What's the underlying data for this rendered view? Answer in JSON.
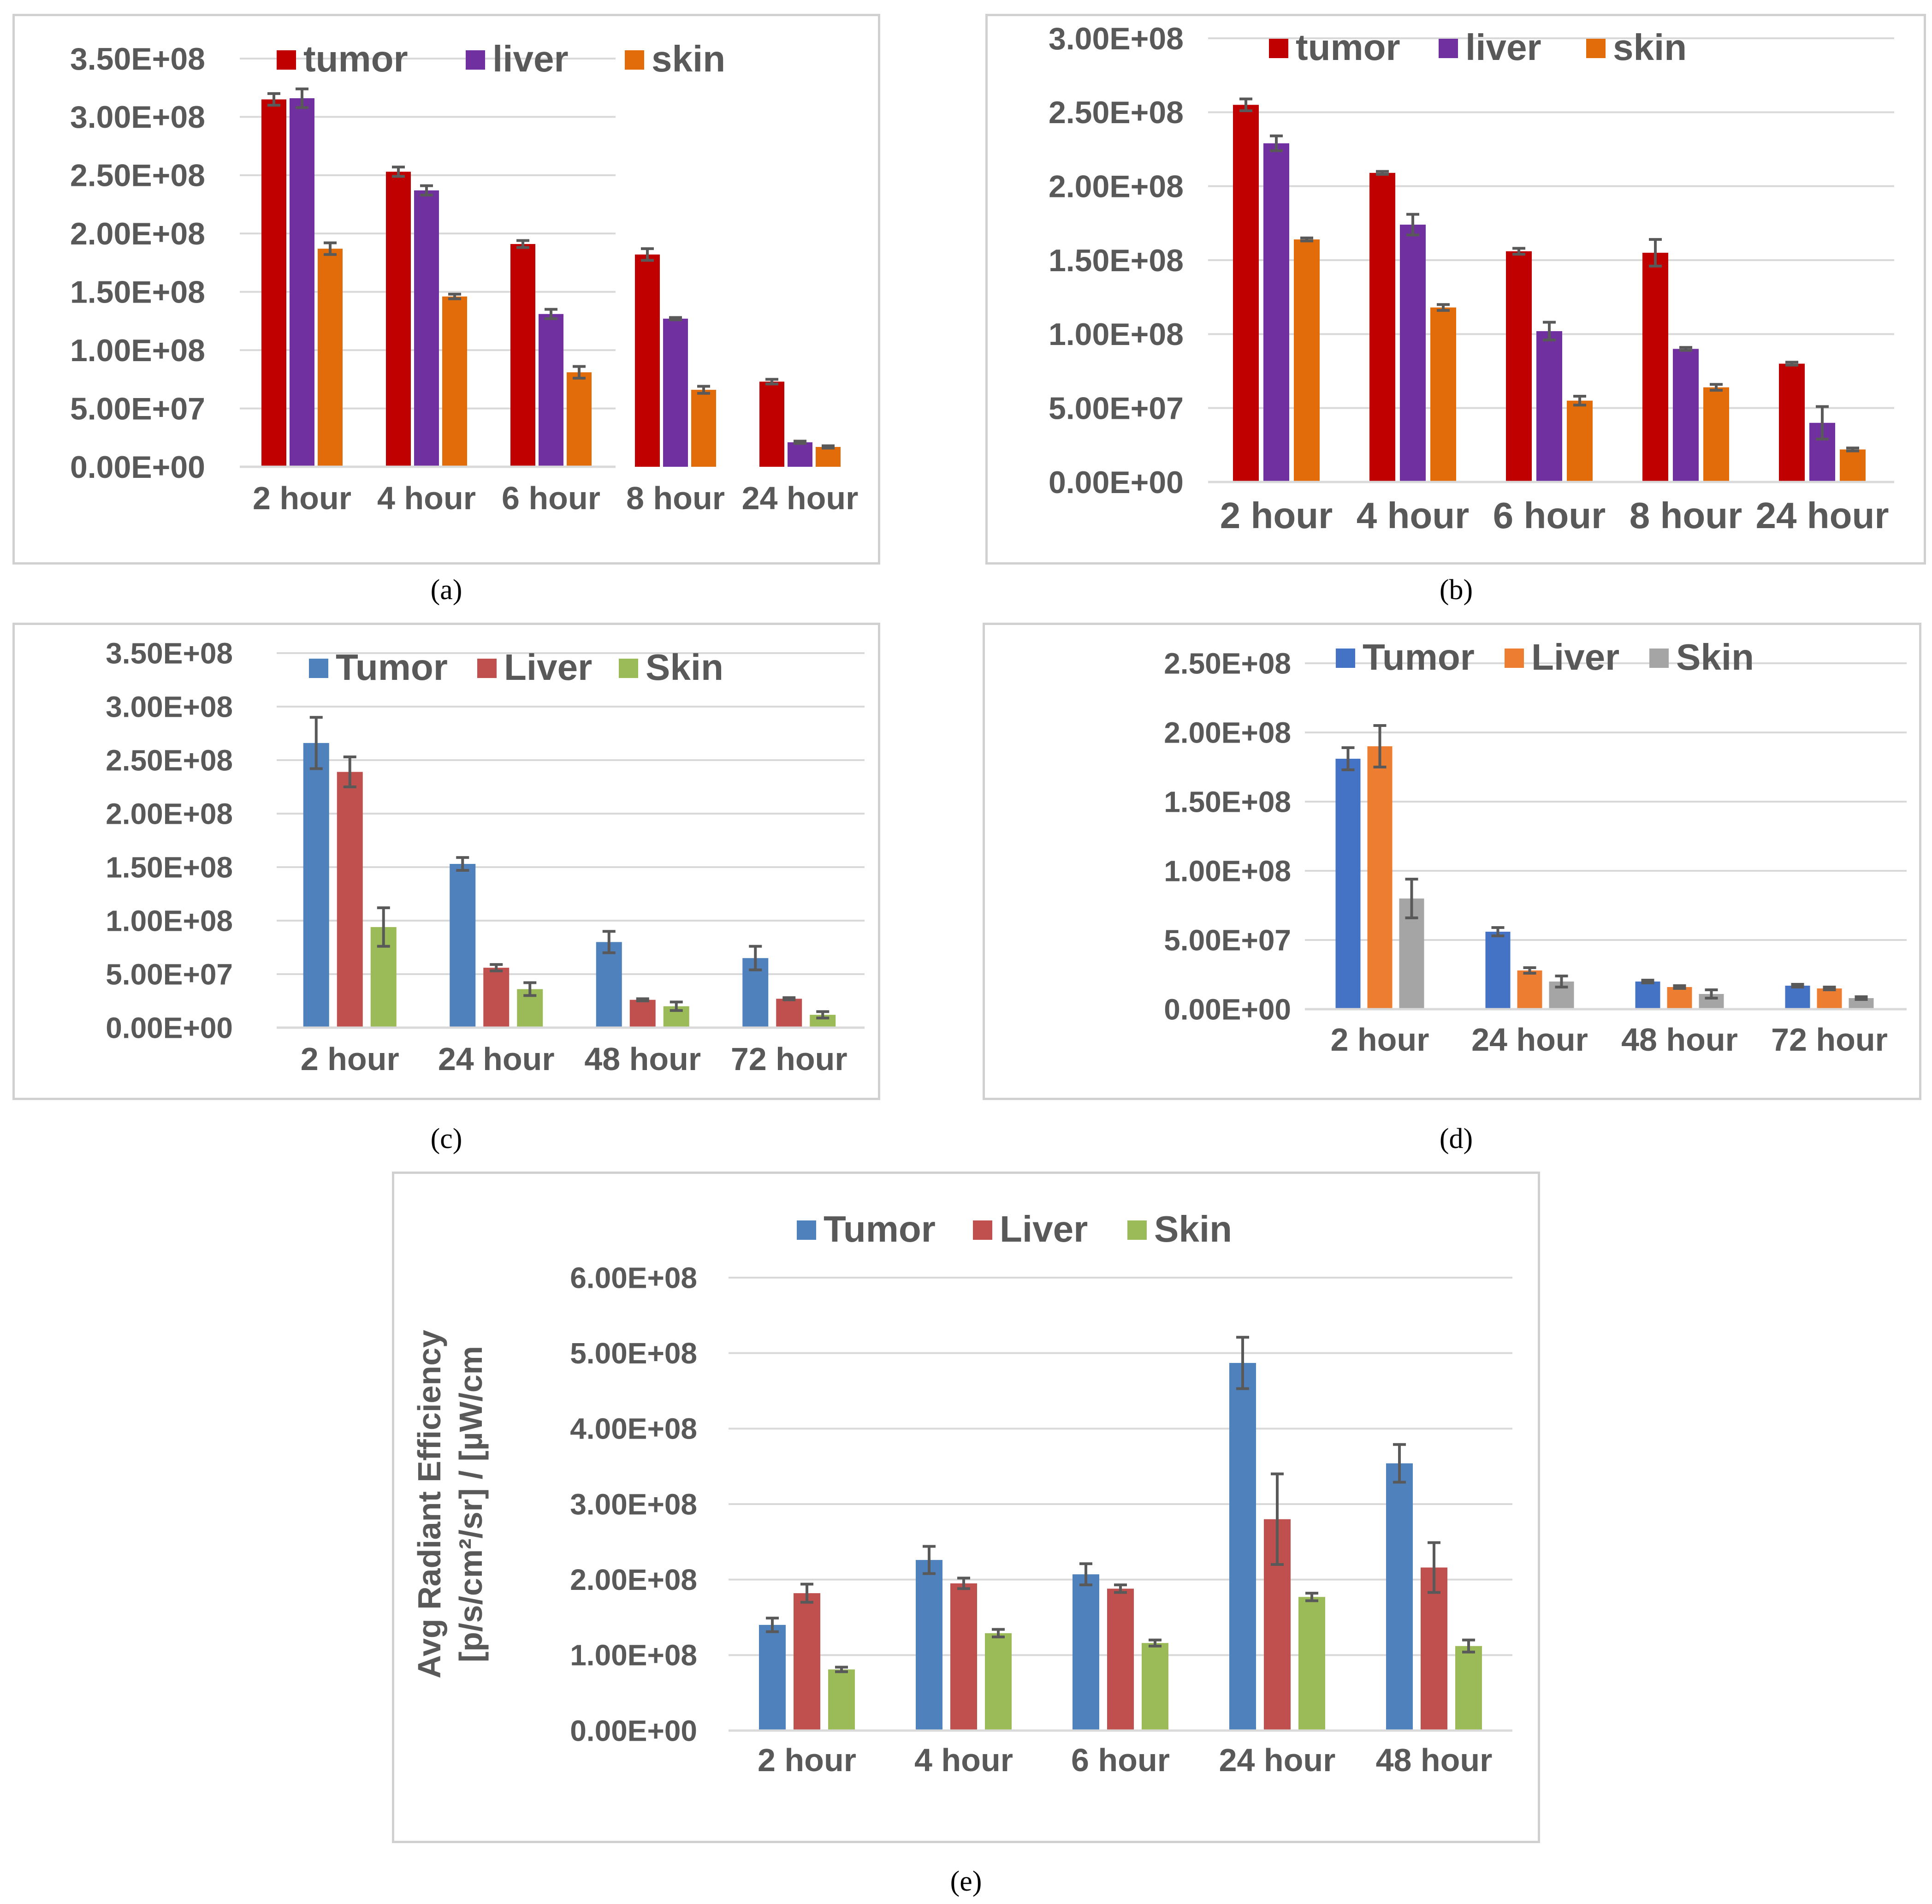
{
  "captions": [
    "(a)",
    "(b)",
    "(c)",
    "(d)",
    "(e)"
  ],
  "chart_data": [
    {
      "id": "a",
      "type": "bar",
      "categories": [
        "2 hour",
        "4 hour",
        "6 hour",
        "8 hour",
        "24 hour"
      ],
      "yticks": [
        "0.00E+00",
        "5.00E+07",
        "1.00E+08",
        "1.50E+08",
        "2.00E+08",
        "2.50E+08",
        "3.00E+08",
        "3.50E+08"
      ],
      "ylim": [
        0,
        350000000
      ],
      "legend": "top",
      "series": [
        {
          "name": "tumor",
          "color": "#c00000",
          "values": [
            315000000,
            253000000,
            191000000,
            182000000,
            73000000
          ],
          "errors": [
            5000000,
            4000000,
            3000000,
            5000000,
            2000000
          ]
        },
        {
          "name": "liver",
          "color": "#7030a0",
          "values": [
            316000000,
            237000000,
            131000000,
            127000000,
            21000000
          ],
          "errors": [
            8000000,
            4000000,
            4000000,
            1000000,
            1000000
          ]
        },
        {
          "name": "skin",
          "color": "#e36c0a",
          "values": [
            187000000,
            146000000,
            81000000,
            66000000,
            17000000
          ],
          "errors": [
            5000000,
            2000000,
            5000000,
            3000000,
            1000000
          ]
        }
      ]
    },
    {
      "id": "b",
      "type": "bar",
      "categories": [
        "2 hour",
        "4 hour",
        "6 hour",
        "8 hour",
        "24 hour"
      ],
      "yticks": [
        "0.00E+00",
        "5.00E+07",
        "1.00E+08",
        "1.50E+08",
        "2.00E+08",
        "2.50E+08",
        "3.00E+08"
      ],
      "ylim": [
        0,
        300000000
      ],
      "legend": "top",
      "series": [
        {
          "name": "tumor",
          "color": "#c00000",
          "values": [
            255000000,
            209000000,
            156000000,
            155000000,
            80000000
          ],
          "errors": [
            4000000,
            1000000,
            2000000,
            9000000,
            1000000
          ]
        },
        {
          "name": "liver",
          "color": "#7030a0",
          "values": [
            229000000,
            174000000,
            102000000,
            90000000,
            40000000
          ],
          "errors": [
            5000000,
            7000000,
            6000000,
            1000000,
            11000000
          ]
        },
        {
          "name": "skin",
          "color": "#e36c0a",
          "values": [
            164000000,
            118000000,
            55000000,
            64000000,
            22000000
          ],
          "errors": [
            1000000,
            2000000,
            3000000,
            2000000,
            1000000
          ]
        }
      ]
    },
    {
      "id": "c",
      "type": "bar",
      "categories": [
        "2 hour",
        "24 hour",
        "48 hour",
        "72 hour"
      ],
      "yticks": [
        "0.00E+00",
        "5.00E+07",
        "1.00E+08",
        "1.50E+08",
        "2.00E+08",
        "2.50E+08",
        "3.00E+08",
        "3.50E+08"
      ],
      "ylim": [
        0,
        350000000
      ],
      "legend": "top",
      "series": [
        {
          "name": "Tumor",
          "color": "#4f81bd",
          "values": [
            266000000,
            153000000,
            80000000,
            65000000
          ],
          "errors": [
            24000000,
            6000000,
            10000000,
            11000000
          ]
        },
        {
          "name": "Liver",
          "color": "#c0504d",
          "values": [
            239000000,
            56000000,
            26000000,
            27000000
          ],
          "errors": [
            14000000,
            3000000,
            1000000,
            1000000
          ]
        },
        {
          "name": "Skin",
          "color": "#9bbb59",
          "values": [
            94000000,
            36000000,
            20000000,
            12000000
          ],
          "errors": [
            18000000,
            6000000,
            4000000,
            3000000
          ]
        }
      ]
    },
    {
      "id": "d",
      "type": "bar",
      "categories": [
        "2 hour",
        "24 hour",
        "48 hour",
        "72 hour"
      ],
      "yticks": [
        "0.00E+00",
        "5.00E+07",
        "1.00E+08",
        "1.50E+08",
        "2.00E+08",
        "2.50E+08"
      ],
      "ylim": [
        0,
        250000000
      ],
      "legend": "top",
      "series": [
        {
          "name": "Tumor",
          "color": "#4472c4",
          "values": [
            181000000,
            56000000,
            20000000,
            17000000
          ],
          "errors": [
            8000000,
            3000000,
            1000000,
            1000000
          ]
        },
        {
          "name": "Liver",
          "color": "#ed7d31",
          "values": [
            190000000,
            28000000,
            16000000,
            15000000
          ],
          "errors": [
            15000000,
            2000000,
            1000000,
            1000000
          ]
        },
        {
          "name": "Skin",
          "color": "#a5a5a5",
          "values": [
            80000000,
            20000000,
            11000000,
            8000000
          ],
          "errors": [
            14000000,
            4000000,
            3000000,
            1000000
          ]
        }
      ]
    },
    {
      "id": "e",
      "type": "bar",
      "categories": [
        "2 hour",
        "4 hour",
        "6 hour",
        "24 hour",
        "48 hour"
      ],
      "yticks": [
        "0.00E+00",
        "1.00E+08",
        "2.00E+08",
        "3.00E+08",
        "4.00E+08",
        "5.00E+08",
        "6.00E+08"
      ],
      "ylim": [
        0,
        600000000
      ],
      "ylabel_line1": "Avg Radiant Efficiency",
      "ylabel_line2": "[p/s/cm²/sr] / [µW/cm",
      "legend": "top",
      "series": [
        {
          "name": "Tumor",
          "color": "#4f81bd",
          "values": [
            140000000,
            226000000,
            207000000,
            487000000,
            354000000
          ],
          "errors": [
            9000000,
            18000000,
            14000000,
            34000000,
            25000000
          ]
        },
        {
          "name": "Liver",
          "color": "#c0504d",
          "values": [
            182000000,
            195000000,
            188000000,
            280000000,
            216000000
          ],
          "errors": [
            12000000,
            7000000,
            5000000,
            60000000,
            33000000
          ]
        },
        {
          "name": "Skin",
          "color": "#9bbb59",
          "values": [
            81000000,
            129000000,
            116000000,
            177000000,
            112000000
          ],
          "errors": [
            3000000,
            5000000,
            4000000,
            5000000,
            8000000
          ]
        }
      ]
    }
  ]
}
